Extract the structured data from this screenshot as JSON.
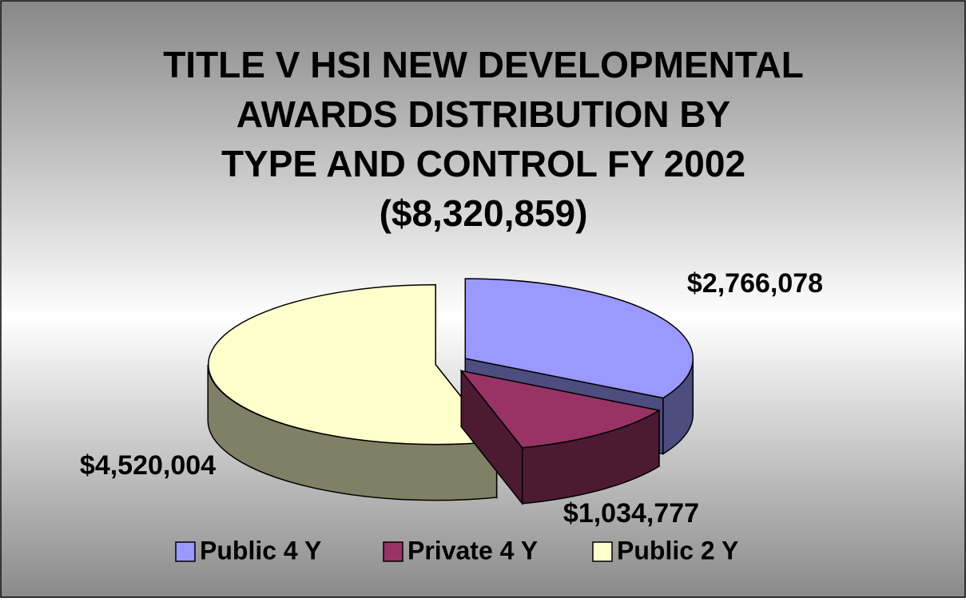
{
  "chart_data": {
    "type": "pie3d",
    "title": [
      "TITLE V HSI NEW DEVELOPMENTAL",
      "AWARDS DISTRIBUTION BY",
      "TYPE AND CONTROL FY 2002",
      "($8,320,859)"
    ],
    "categories": [
      "Public 4 Y",
      "Private 4 Y",
      "Public 2 Y"
    ],
    "values": [
      2766078,
      1034777,
      4520004
    ],
    "value_labels": [
      "$2,766,078",
      "$1,034,777",
      "$4,520,004"
    ],
    "colors": [
      "#9999ff",
      "#993366",
      "#ffffcc"
    ],
    "legend": "bottom"
  }
}
